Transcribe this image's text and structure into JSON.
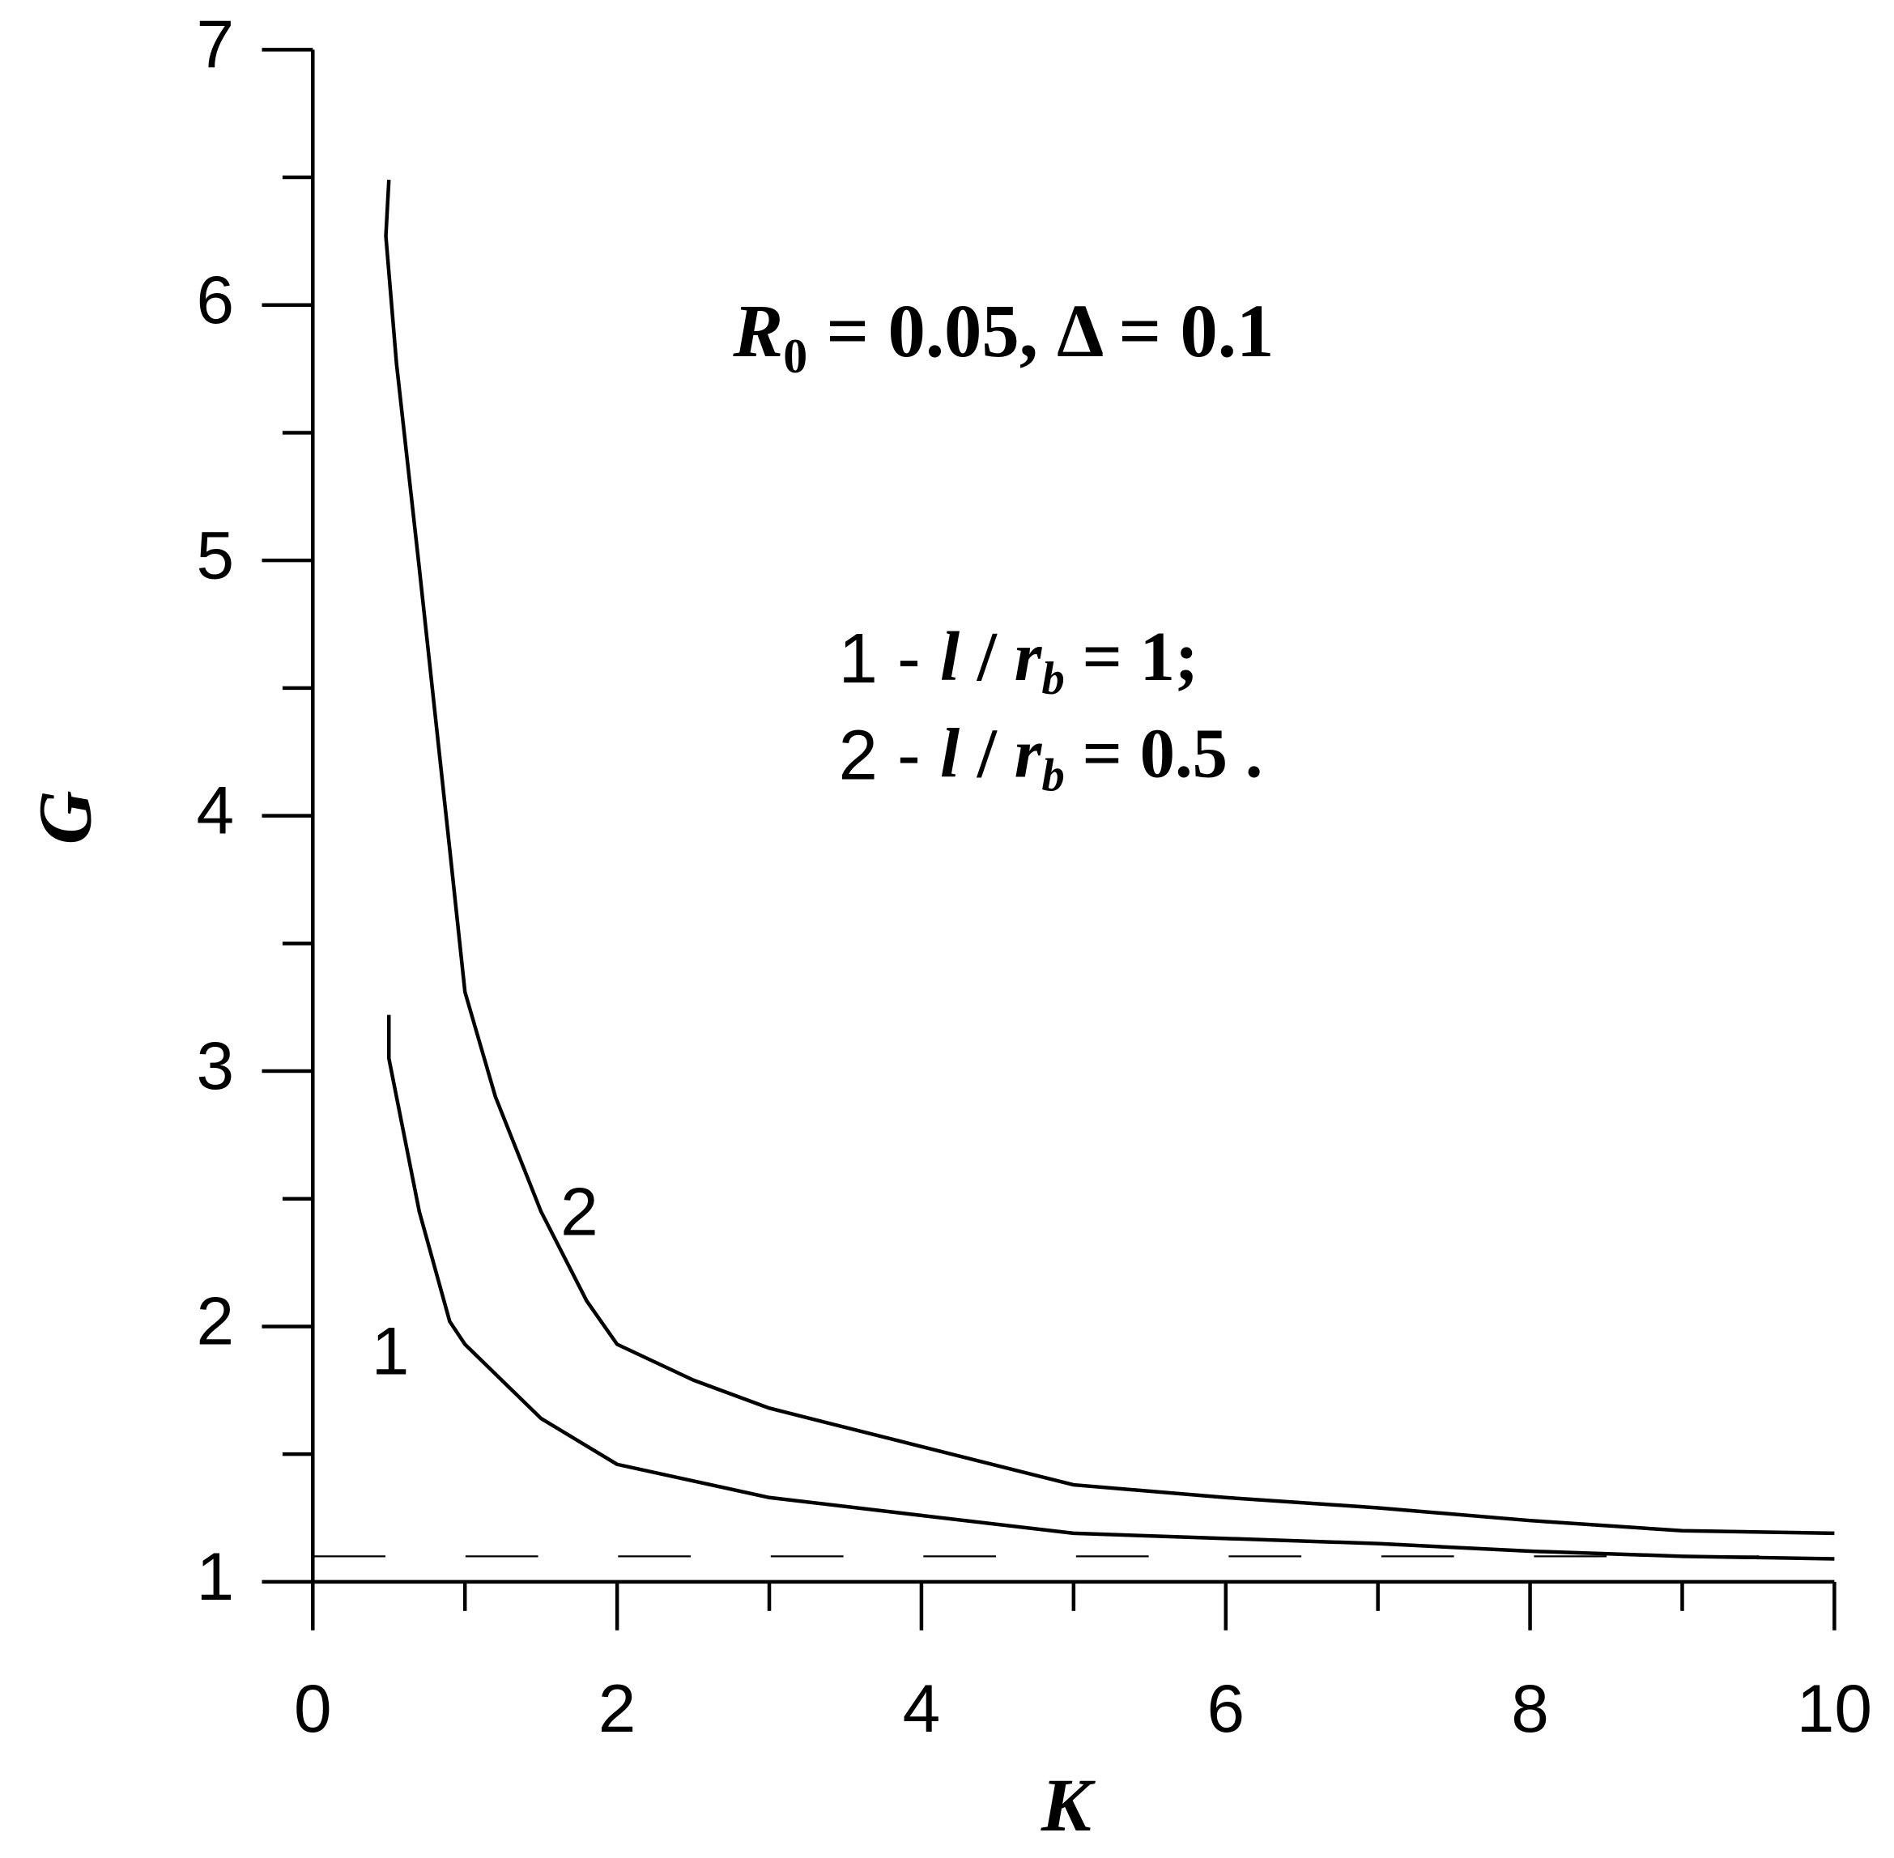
{
  "chart_data": {
    "type": "line",
    "xlabel": "K",
    "ylabel": "G",
    "xlim": [
      0,
      10
    ],
    "ylim": [
      1,
      7
    ],
    "xticks": [
      0,
      2,
      4,
      6,
      8,
      10
    ],
    "xminorticks": [
      1,
      3,
      5,
      7,
      9
    ],
    "yticks": [
      1,
      2,
      3,
      4,
      5,
      6,
      7
    ],
    "yminorticks": [
      1.5,
      2.5,
      3.5,
      4.5,
      5.5,
      6.5
    ],
    "series": [
      {
        "name": "1",
        "color": "#000000",
        "x": [
          0.5,
          0.5,
          0.7,
          0.9,
          1.0,
          1.5,
          2,
          3,
          4,
          5,
          6,
          7,
          8,
          9,
          10
        ],
        "values": [
          3.22,
          3.05,
          2.45,
          2.02,
          1.93,
          1.64,
          1.46,
          1.33,
          1.26,
          1.19,
          1.17,
          1.15,
          1.12,
          1.1,
          1.09
        ]
      },
      {
        "name": "2",
        "color": "#000000",
        "x": [
          0.5,
          0.48,
          0.55,
          0.7,
          0.9,
          1.0,
          1.2,
          1.5,
          1.8,
          2.0,
          2.5,
          3,
          4,
          5,
          6,
          7,
          8,
          9,
          10
        ],
        "values": [
          6.49,
          6.27,
          5.77,
          4.97,
          3.87,
          3.31,
          2.9,
          2.45,
          2.1,
          1.93,
          1.79,
          1.68,
          1.53,
          1.38,
          1.33,
          1.29,
          1.24,
          1.2,
          1.19
        ]
      }
    ],
    "reference_line": 1.1,
    "annotation_params": [
      "R",
      "0",
      " = 0.05, Δ = 0.1"
    ],
    "annotation_legend": [
      [
        "1 - ",
        "l",
        " / ",
        "r",
        "b",
        " = 1;"
      ],
      [
        "2 - ",
        "l",
        " / ",
        "r",
        "b",
        " = 0.5 ."
      ]
    ]
  }
}
